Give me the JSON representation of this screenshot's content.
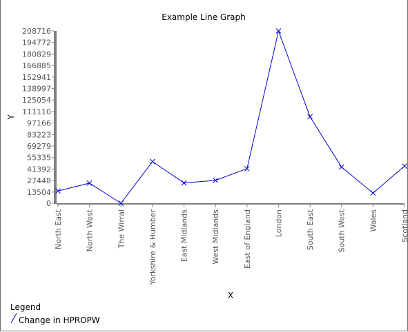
{
  "chart_data": {
    "type": "line",
    "title": "Example Line Graph",
    "xlabel": "X",
    "ylabel": "Y",
    "categories": [
      "North East",
      "North West",
      "The Wirral",
      "Yorkshire & Humber",
      "East Midlands",
      "West Midlands",
      "East of England",
      "London",
      "South East",
      "South West",
      "Wales",
      "Scotland"
    ],
    "yticks": [
      0,
      13504,
      27448,
      41392,
      55335,
      69279,
      83223,
      97166,
      111110,
      125054,
      138997,
      152941,
      166885,
      180829,
      194772,
      208716
    ],
    "ylim": [
      0,
      208716
    ],
    "series": [
      {
        "name": "Change in HPROPW",
        "color": "#0000cc",
        "marker": "x",
        "values": [
          14800,
          24300,
          0,
          50500,
          24500,
          27700,
          41900,
          208716,
          104800,
          43800,
          12300,
          45000
        ]
      }
    ],
    "grid": false,
    "legend": {
      "title": "Legend",
      "placement": "bottom-left"
    }
  }
}
